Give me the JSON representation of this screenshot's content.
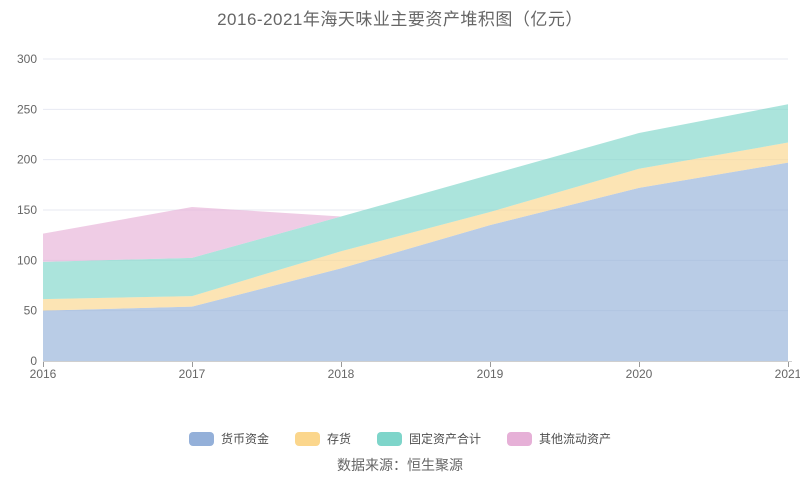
{
  "title": "2016-2021年海天味业主要资产堆积图（亿元）",
  "source": "数据来源：恒生聚源",
  "chart_data": {
    "type": "area",
    "stacked": true,
    "title": "2016-2021年海天味业主要资产堆积图（亿元）",
    "categories": [
      "2016",
      "2017",
      "2018",
      "2019",
      "2020",
      "2021"
    ],
    "series": [
      {
        "name": "货币资金",
        "color": "#94b0d9",
        "values": [
          50,
          54,
          92,
          135,
          172,
          197
        ]
      },
      {
        "name": "存货",
        "color": "#fbd68c",
        "values": [
          11.5,
          10.5,
          17,
          13,
          19,
          20
        ]
      },
      {
        "name": "固定资产合计",
        "color": "#7ed5ca",
        "values": [
          37,
          38,
          34.5,
          37,
          35.5,
          38
        ]
      },
      {
        "name": "其他流动资产",
        "color": "#e6b0d7",
        "values": [
          28,
          50.5,
          0,
          0,
          0,
          0
        ]
      }
    ],
    "xlabel": "",
    "ylabel": "",
    "ylim": [
      0,
      300
    ],
    "y_ticks": [
      0,
      50,
      100,
      150,
      200,
      250,
      300
    ],
    "grid": true,
    "legend_position": "bottom",
    "area_opacity": 0.65
  },
  "colors": {
    "background": "#ffffff",
    "title": "#666666",
    "axis_label": "#666666",
    "gridline": "#e7eaf2",
    "axis_line": "#cfcfcf",
    "tick": "#999999"
  }
}
